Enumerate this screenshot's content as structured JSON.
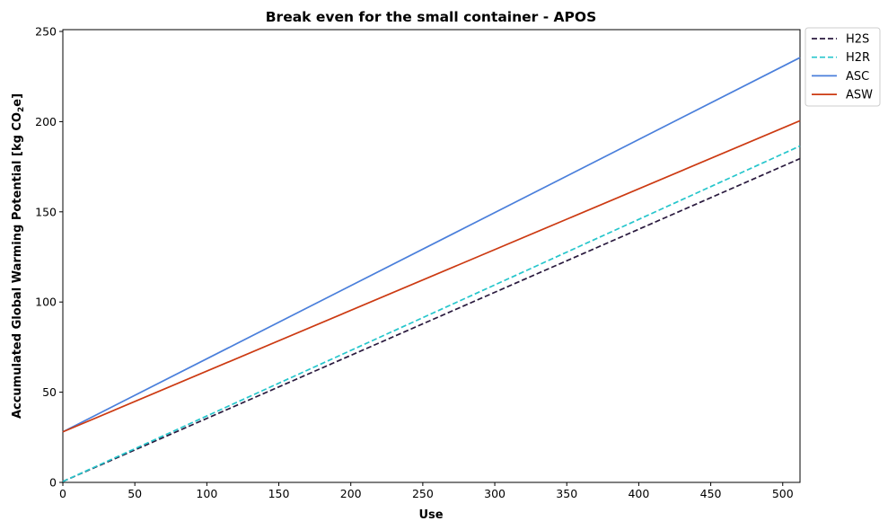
{
  "chart_data": {
    "type": "line",
    "title": "Break even for the small container - APOS",
    "xlabel": "Use",
    "ylabel_main": "Accumulated Global Warming Potential [kg CO",
    "ylabel_sub": "2",
    "ylabel_tail": "e]",
    "xlim": [
      0,
      512
    ],
    "ylim": [
      0,
      251
    ],
    "xticks": [
      0,
      50,
      100,
      150,
      200,
      250,
      300,
      350,
      400,
      450,
      500
    ],
    "yticks": [
      0,
      50,
      100,
      150,
      200,
      250
    ],
    "grid": false,
    "legend_position": "outside top-right",
    "series": [
      {
        "name": "H2S",
        "color": "#2a1a3e",
        "dash": "dashed",
        "x": [
          0,
          512
        ],
        "y": [
          0.5,
          179.5
        ]
      },
      {
        "name": "H2R",
        "color": "#26c6cc",
        "dash": "dashed",
        "x": [
          0,
          512
        ],
        "y": [
          0.5,
          186.5
        ]
      },
      {
        "name": "ASC",
        "color": "#4a7fdb",
        "dash": "solid",
        "x": [
          0,
          512
        ],
        "y": [
          28,
          235.5
        ]
      },
      {
        "name": "ASW",
        "color": "#cc3a12",
        "dash": "solid",
        "x": [
          0,
          512
        ],
        "y": [
          28,
          200.5
        ]
      }
    ]
  }
}
